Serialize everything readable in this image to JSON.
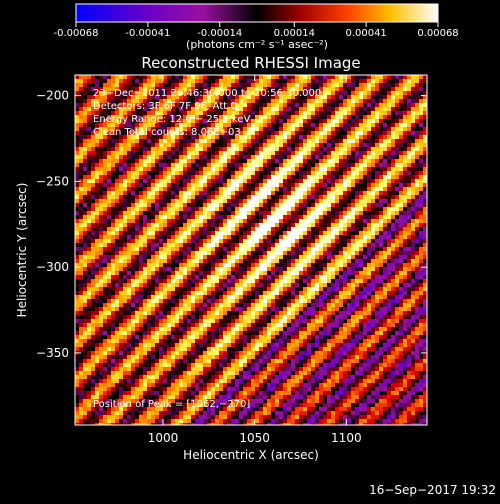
{
  "colorbar": {
    "ticks": [
      "-0.00068",
      "-0.00041",
      "-0.00014",
      "0.00014",
      "0.00041",
      "0.00068"
    ],
    "tick_values": [
      -0.00068,
      -0.00041,
      -0.00014,
      0.00014,
      0.00041,
      0.00068
    ],
    "unit_label": "(photons cm⁻² s⁻¹ asec⁻²)"
  },
  "chart_data": {
    "type": "heatmap",
    "title": "Reconstructed RHESSI Image",
    "xlabel": "Heliocentric X (arcsec)",
    "ylabel": "Heliocentric Y (arcsec)",
    "xlim": [
      952,
      1144
    ],
    "ylim": [
      -392,
      -188
    ],
    "xticks": [
      1000,
      1050,
      1100
    ],
    "yticks": [
      -350,
      -300,
      -250,
      -200
    ],
    "xtick_labels": [
      "1000",
      "1050",
      "1100"
    ],
    "ytick_labels": [
      "−350",
      "−300",
      "−250",
      "−200"
    ],
    "value_range": [
      -0.00068,
      0.00068
    ],
    "peak": [
      1062,
      -270
    ],
    "colormap": [
      "#0000ff",
      "#6a00c8",
      "#9a10a0",
      "#000000",
      "#7a0000",
      "#e00000",
      "#ff7000",
      "#ffc000",
      "#ffff70",
      "#ffffff"
    ],
    "annotations": [
      "23−Dec−2011 20:46:30.000 to 20:56:30.000",
      "Detectors: 3F 6F 7F 9F, Att 0",
      "Energy Range: 12.0 − 25.0 keV",
      "Clean  Total counts: 8.06E+03",
      "Position of Peak = [1062,−270]"
    ]
  },
  "footer": {
    "timestamp": "16−Sep−2017 19:32"
  }
}
